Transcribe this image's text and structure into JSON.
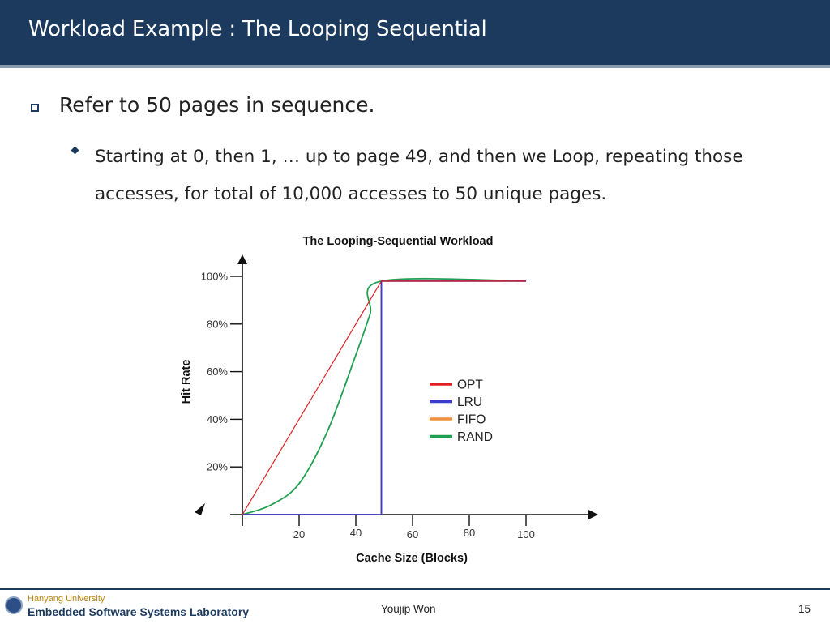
{
  "slide": {
    "title": "Workload Example : The Looping Sequential",
    "bullet1": "Refer to 50 pages in sequence.",
    "bullet2": "Starting at 0, then 1, … up to page 49, and then we Loop, repeating those accesses, for total of 10,000 accesses to 50 unique pages."
  },
  "chart_data": {
    "type": "line",
    "title": "The Looping-Sequential Workload",
    "xlabel": "Cache Size (Blocks)",
    "ylabel": "Hit Rate",
    "xlim": [
      0,
      100
    ],
    "ylim": [
      0,
      100
    ],
    "x_ticks": [
      20,
      40,
      60,
      80,
      100
    ],
    "x_tick_labels": [
      "20",
      "40",
      "60",
      "80",
      "100"
    ],
    "y_ticks": [
      20,
      40,
      60,
      80,
      100
    ],
    "y_tick_labels": [
      "20%",
      "40%",
      "60%",
      "80%",
      "100%"
    ],
    "legend_position": "center-right",
    "series": [
      {
        "name": "OPT",
        "color": "#e02020",
        "x": [
          0,
          49,
          100
        ],
        "y": [
          0,
          98,
          98
        ]
      },
      {
        "name": "LRU",
        "color": "#3a3acc",
        "x": [
          0,
          49,
          49,
          100
        ],
        "y": [
          0,
          0,
          98,
          98
        ]
      },
      {
        "name": "FIFO",
        "color": "#f0903a",
        "x": [
          0,
          49,
          49,
          100
        ],
        "y": [
          0,
          0,
          98,
          98
        ]
      },
      {
        "name": "RAND",
        "color": "#20a050",
        "x": [
          0,
          10,
          20,
          30,
          40,
          45,
          49,
          100
        ],
        "y": [
          0,
          4,
          13,
          35,
          67,
          84,
          98,
          98
        ]
      }
    ]
  },
  "footer": {
    "university": "Hanyang University",
    "lab": "Embedded Software Systems Laboratory",
    "author": "Youjip Won",
    "page": "15"
  }
}
